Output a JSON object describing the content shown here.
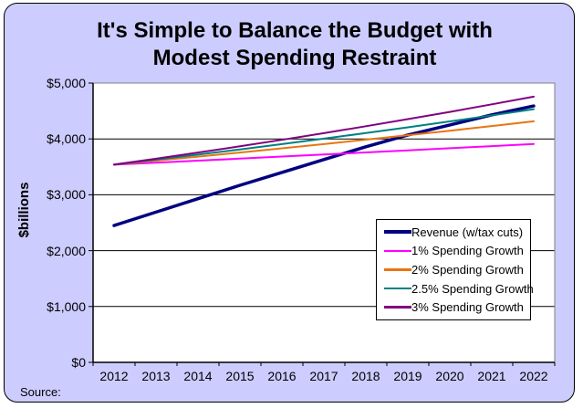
{
  "chart": {
    "title_lines": [
      "It's Simple to Balance the Budget with",
      "Modest Spending Restraint"
    ],
    "source_label": "Source:"
  },
  "chart_data": {
    "type": "line",
    "title": "It's Simple to Balance the Budget with Modest Spending Restraint",
    "xlabel": "",
    "ylabel": "$billions",
    "x": [
      2012,
      2013,
      2014,
      2015,
      2016,
      2017,
      2018,
      2019,
      2020,
      2021,
      2022
    ],
    "ylim": [
      0,
      5000
    ],
    "y_ticks": [
      {
        "label": "$0",
        "value": 0
      },
      {
        "label": "$1,000",
        "value": 1000
      },
      {
        "label": "$2,000",
        "value": 2000
      },
      {
        "label": "$3,000",
        "value": 3000
      },
      {
        "label": "$4,000",
        "value": 4000
      },
      {
        "label": "$5,000",
        "value": 5000
      }
    ],
    "grid": true,
    "legend_position": "inside-right",
    "series": [
      {
        "name": "Revenue (w/tax cuts)",
        "color": "#000080",
        "line_width": 3.5,
        "values": [
          2450,
          2690,
          2930,
          3170,
          3400,
          3630,
          3860,
          4070,
          4250,
          4430,
          4590
        ]
      },
      {
        "name": "1% Spending Growth",
        "color": "#FF00FF",
        "line_width": 2,
        "values": [
          3540,
          3575,
          3611,
          3647,
          3684,
          3721,
          3758,
          3795,
          3833,
          3871,
          3910
        ]
      },
      {
        "name": "2% Spending Growth",
        "color": "#E87511",
        "line_width": 2,
        "values": [
          3540,
          3611,
          3683,
          3757,
          3832,
          3908,
          3987,
          4066,
          4147,
          4230,
          4315
        ]
      },
      {
        "name": "2.5% Spending Growth",
        "color": "#008080",
        "line_width": 2,
        "values": [
          3540,
          3629,
          3719,
          3812,
          3908,
          4005,
          4105,
          4208,
          4313,
          4421,
          4532
        ]
      },
      {
        "name": "3% Spending Growth",
        "color": "#800080",
        "line_width": 2,
        "values": [
          3540,
          3646,
          3756,
          3868,
          3984,
          4104,
          4227,
          4354,
          4484,
          4619,
          4757
        ]
      }
    ],
    "colors": {
      "background": "#CCCCFF",
      "plot_background": "#FFFFFF",
      "gridline": "#000000",
      "plot_border": "#808080",
      "axis": "#000000",
      "text": "#000000",
      "frame_border": "#000000"
    }
  }
}
